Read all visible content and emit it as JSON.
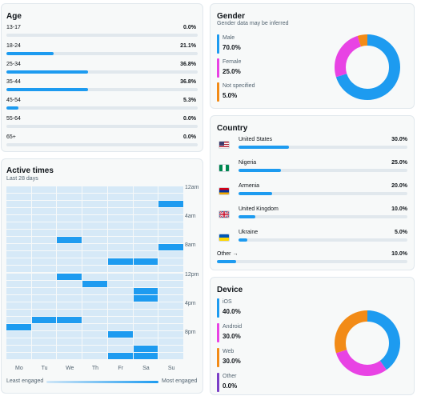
{
  "age": {
    "title": "Age",
    "rows": [
      {
        "label": "13-17",
        "value": "0.0%",
        "pct": 0.0
      },
      {
        "label": "18-24",
        "value": "21.1%",
        "pct": 21.1
      },
      {
        "label": "25-34",
        "value": "36.8%",
        "pct": 36.8
      },
      {
        "label": "35-44",
        "value": "36.8%",
        "pct": 36.8
      },
      {
        "label": "45-54",
        "value": "5.3%",
        "pct": 5.3
      },
      {
        "label": "55-64",
        "value": "0.0%",
        "pct": 0.0
      },
      {
        "label": "65+",
        "value": "0.0%",
        "pct": 0.0
      }
    ]
  },
  "gender": {
    "title": "Gender",
    "subtitle": "Gender data may be inferred",
    "items": [
      {
        "label": "Male",
        "value": "70.0%",
        "pct": 70.0,
        "color": "#1d9bf0"
      },
      {
        "label": "Female",
        "value": "25.0%",
        "pct": 25.0,
        "color": "#e843e4"
      },
      {
        "label": "Not specified",
        "value": "5.0%",
        "pct": 5.0,
        "color": "#f28b17"
      }
    ]
  },
  "country": {
    "title": "Country",
    "rows": [
      {
        "label": "United States",
        "value": "30.0%",
        "pct": 30.0,
        "flag": "us-flag-icon"
      },
      {
        "label": "Nigeria",
        "value": "25.0%",
        "pct": 25.0,
        "flag": "nigeria-flag-icon"
      },
      {
        "label": "Armenia",
        "value": "20.0%",
        "pct": 20.0,
        "flag": "armenia-flag-icon"
      },
      {
        "label": "United Kingdom",
        "value": "10.0%",
        "pct": 10.0,
        "flag": "uk-flag-icon"
      },
      {
        "label": "Ukraine",
        "value": "5.0%",
        "pct": 5.0,
        "flag": "ukraine-flag-icon"
      }
    ],
    "other": {
      "label": "Other →",
      "value": "10.0%",
      "pct": 10.0
    }
  },
  "active_times": {
    "title": "Active times",
    "subtitle": "Last 28 days",
    "days": [
      "Mo",
      "Tu",
      "We",
      "Th",
      "Fr",
      "Sa",
      "Su"
    ],
    "hour_labels": [
      "12am",
      "4am",
      "8am",
      "12pm",
      "4pm",
      "8pm"
    ],
    "legend": {
      "least": "Least engaged",
      "most": "Most engaged"
    },
    "engaged_cells": [
      {
        "day": 6,
        "hour": 2
      },
      {
        "day": 2,
        "hour": 7
      },
      {
        "day": 6,
        "hour": 8
      },
      {
        "day": 4,
        "hour": 10
      },
      {
        "day": 5,
        "hour": 10
      },
      {
        "day": 2,
        "hour": 12
      },
      {
        "day": 3,
        "hour": 13
      },
      {
        "day": 5,
        "hour": 14
      },
      {
        "day": 5,
        "hour": 15
      },
      {
        "day": 1,
        "hour": 18
      },
      {
        "day": 2,
        "hour": 18
      },
      {
        "day": 0,
        "hour": 19
      },
      {
        "day": 4,
        "hour": 20
      },
      {
        "day": 5,
        "hour": 22
      },
      {
        "day": 4,
        "hour": 23
      },
      {
        "day": 5,
        "hour": 23
      }
    ],
    "colors": {
      "low": "#d6e9f7",
      "high": "#1d9bf0"
    }
  },
  "device": {
    "title": "Device",
    "items": [
      {
        "label": "iOS",
        "value": "40.0%",
        "pct": 40.0,
        "color": "#1d9bf0"
      },
      {
        "label": "Android",
        "value": "30.0%",
        "pct": 30.0,
        "color": "#e843e4"
      },
      {
        "label": "Web",
        "value": "30.0%",
        "pct": 30.0,
        "color": "#f28b17"
      },
      {
        "label": "Other",
        "value": "0.0%",
        "pct": 0.0,
        "color": "#7b3fc7"
      }
    ]
  }
}
